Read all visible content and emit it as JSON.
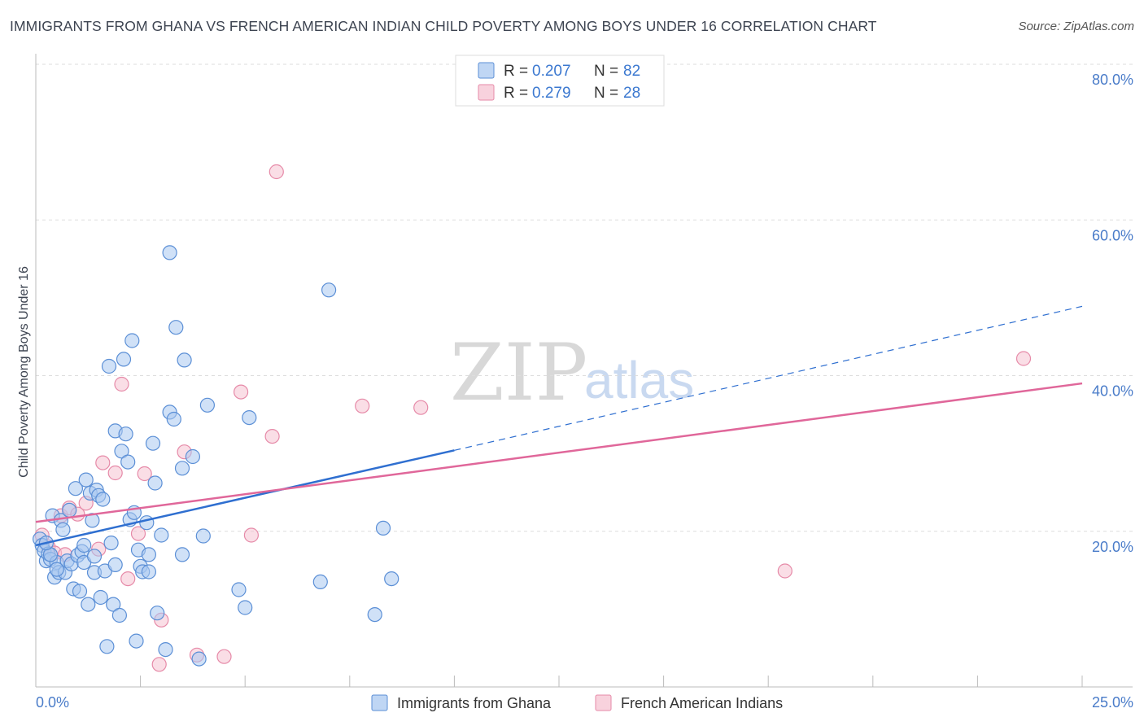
{
  "title": "IMMIGRANTS FROM GHANA VS FRENCH AMERICAN INDIAN CHILD POVERTY AMONG BOYS UNDER 16 CORRELATION CHART",
  "source": "Source: ZipAtlas.com",
  "watermark": {
    "zip": "ZIP",
    "atlas": "atlas"
  },
  "colors": {
    "blue_fill": "#a9c8f0",
    "blue_stroke": "#5b8fd6",
    "blue_line": "#2f6fd0",
    "pink_fill": "#f6c3d2",
    "pink_stroke": "#e68aa8",
    "pink_line": "#e0679a",
    "axis_label": "#4a7cc9",
    "grid": "#dddddd"
  },
  "legend": {
    "rows": [
      {
        "r_label": "R = ",
        "r_value": "0.207",
        "n_label": "N = ",
        "n_value": "82",
        "series": "blue"
      },
      {
        "r_label": "R = ",
        "r_value": "0.279",
        "n_label": "N = ",
        "n_value": "28",
        "series": "pink"
      }
    ]
  },
  "bottom_legend": [
    "Immigrants from Ghana",
    "French American Indians"
  ],
  "chart_data": {
    "type": "scatter",
    "title": "IMMIGRANTS FROM GHANA VS FRENCH AMERICAN INDIAN CHILD POVERTY AMONG BOYS UNDER 16 CORRELATION CHART",
    "xlabel": "",
    "ylabel": "Child Poverty Among Boys Under 16",
    "xlim": [
      0,
      25
    ],
    "ylim": [
      0,
      80
    ],
    "x_tick_labels": [
      "0.0%",
      "25.0%"
    ],
    "y_ticks": [
      20,
      40,
      60,
      80
    ],
    "y_tick_labels": [
      "20.0%",
      "40.0%",
      "60.0%",
      "80.0%"
    ],
    "grid": true,
    "legend_position": "top-center",
    "series": [
      {
        "name": "Immigrants from Ghana",
        "color": "blue",
        "R": 0.207,
        "N": 82,
        "trend": {
          "x0": 0,
          "y0": 18.2,
          "x1": 10,
          "y1": 30.4,
          "dash_to_x": 25,
          "dash_to_y": 48.9
        },
        "points": [
          [
            0.1,
            19.0
          ],
          [
            0.15,
            18.2
          ],
          [
            0.2,
            17.5
          ],
          [
            0.25,
            16.2
          ],
          [
            0.3,
            17.1
          ],
          [
            0.35,
            16.4
          ],
          [
            0.4,
            22.0
          ],
          [
            0.45,
            14.1
          ],
          [
            0.5,
            16.0
          ],
          [
            0.55,
            14.7
          ],
          [
            0.6,
            21.4
          ],
          [
            0.65,
            20.2
          ],
          [
            0.7,
            14.7
          ],
          [
            0.75,
            16.2
          ],
          [
            0.8,
            22.7
          ],
          [
            0.85,
            15.8
          ],
          [
            0.9,
            12.6
          ],
          [
            0.95,
            25.5
          ],
          [
            1.0,
            16.9
          ],
          [
            1.05,
            12.3
          ],
          [
            1.1,
            17.4
          ],
          [
            1.15,
            18.2
          ],
          [
            1.2,
            26.6
          ],
          [
            1.25,
            10.6
          ],
          [
            1.3,
            24.9
          ],
          [
            1.35,
            21.4
          ],
          [
            1.4,
            14.7
          ],
          [
            1.45,
            25.3
          ],
          [
            1.5,
            24.6
          ],
          [
            1.55,
            11.5
          ],
          [
            1.6,
            24.1
          ],
          [
            1.65,
            14.9
          ],
          [
            1.7,
            5.2
          ],
          [
            1.75,
            41.2
          ],
          [
            1.8,
            18.5
          ],
          [
            1.85,
            10.6
          ],
          [
            1.9,
            15.7
          ],
          [
            1.9,
            32.9
          ],
          [
            2.0,
            9.2
          ],
          [
            2.05,
            30.3
          ],
          [
            2.1,
            42.1
          ],
          [
            2.15,
            32.5
          ],
          [
            2.2,
            28.9
          ],
          [
            2.25,
            21.5
          ],
          [
            2.3,
            44.5
          ],
          [
            2.35,
            22.4
          ],
          [
            2.4,
            5.9
          ],
          [
            2.45,
            17.6
          ],
          [
            2.5,
            15.5
          ],
          [
            2.55,
            14.8
          ],
          [
            2.65,
            21.1
          ],
          [
            2.7,
            17.0
          ],
          [
            2.7,
            14.8
          ],
          [
            2.8,
            31.3
          ],
          [
            2.85,
            26.2
          ],
          [
            2.9,
            9.5
          ],
          [
            3.0,
            19.5
          ],
          [
            3.1,
            4.8
          ],
          [
            3.2,
            35.3
          ],
          [
            3.3,
            34.4
          ],
          [
            3.2,
            55.8
          ],
          [
            3.35,
            46.2
          ],
          [
            3.5,
            17.0
          ],
          [
            3.5,
            28.1
          ],
          [
            3.55,
            42.0
          ],
          [
            3.75,
            29.6
          ],
          [
            3.9,
            3.6
          ],
          [
            4.0,
            19.4
          ],
          [
            4.1,
            36.2
          ],
          [
            4.85,
            12.5
          ],
          [
            5.0,
            10.2
          ],
          [
            5.1,
            34.6
          ],
          [
            6.8,
            13.5
          ],
          [
            7.0,
            51.0
          ],
          [
            8.1,
            9.3
          ],
          [
            8.3,
            20.4
          ],
          [
            8.5,
            13.9
          ],
          [
            1.15,
            16.0
          ],
          [
            0.35,
            17.0
          ],
          [
            0.25,
            18.5
          ],
          [
            1.4,
            16.8
          ],
          [
            0.5,
            15.1
          ]
        ]
      },
      {
        "name": "French American Indians",
        "color": "pink",
        "R": 0.279,
        "N": 28,
        "trend": {
          "x0": 0,
          "y0": 21.2,
          "x1": 25,
          "y1": 39.0
        },
        "points": [
          [
            0.15,
            19.5
          ],
          [
            0.3,
            18.0
          ],
          [
            0.45,
            17.2
          ],
          [
            0.6,
            22.0
          ],
          [
            0.7,
            17.0
          ],
          [
            0.8,
            23.0
          ],
          [
            1.0,
            22.2
          ],
          [
            1.2,
            23.6
          ],
          [
            1.5,
            17.7
          ],
          [
            1.6,
            28.8
          ],
          [
            1.9,
            27.5
          ],
          [
            2.05,
            38.9
          ],
          [
            2.2,
            13.9
          ],
          [
            2.45,
            19.7
          ],
          [
            2.6,
            27.4
          ],
          [
            3.0,
            8.6
          ],
          [
            2.95,
            2.9
          ],
          [
            3.55,
            30.2
          ],
          [
            3.85,
            4.1
          ],
          [
            4.5,
            3.9
          ],
          [
            4.9,
            37.9
          ],
          [
            5.15,
            19.5
          ],
          [
            5.65,
            32.2
          ],
          [
            5.75,
            66.2
          ],
          [
            7.8,
            36.1
          ],
          [
            9.2,
            35.9
          ],
          [
            17.9,
            14.9
          ],
          [
            23.6,
            42.2
          ]
        ]
      }
    ]
  }
}
